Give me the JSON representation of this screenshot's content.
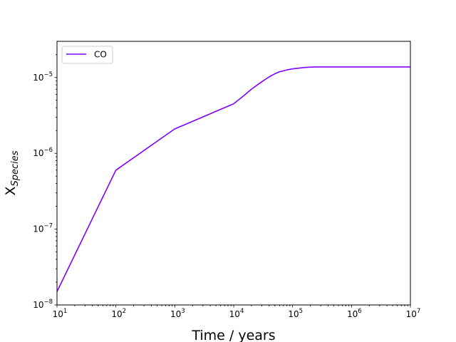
{
  "chart_data": {
    "type": "line",
    "x_scale": "log",
    "y_scale": "log",
    "xlim": [
      10,
      10000000
    ],
    "ylim": [
      1e-08,
      3e-05
    ],
    "xlabel": "Time / years",
    "ylabel_main": "X",
    "ylabel_sub": "Species",
    "x_major_ticks": [
      {
        "value": 10,
        "base": "10",
        "exp": "1"
      },
      {
        "value": 100,
        "base": "10",
        "exp": "2"
      },
      {
        "value": 1000,
        "base": "10",
        "exp": "3"
      },
      {
        "value": 10000,
        "base": "10",
        "exp": "4"
      },
      {
        "value": 100000,
        "base": "10",
        "exp": "5"
      },
      {
        "value": 1000000,
        "base": "10",
        "exp": "6"
      },
      {
        "value": 10000000,
        "base": "10",
        "exp": "7"
      }
    ],
    "y_major_ticks": [
      {
        "value": 1e-08,
        "base": "10",
        "exp": "−8"
      },
      {
        "value": 1e-07,
        "base": "10",
        "exp": "−7"
      },
      {
        "value": 1e-06,
        "base": "10",
        "exp": "−6"
      },
      {
        "value": 1e-05,
        "base": "10",
        "exp": "−5"
      }
    ],
    "grid": false,
    "legend_position": "top-left",
    "series": [
      {
        "name": "CO",
        "color": "#8000ff",
        "x": [
          10,
          100,
          1000,
          10000,
          15000,
          20000,
          30000,
          40000,
          50000,
          60000,
          80000,
          100000,
          150000,
          200000,
          300000,
          500000,
          1000000,
          10000000
        ],
        "y": [
          1.5e-08,
          6e-07,
          2.1e-06,
          4.5e-06,
          5.8e-06,
          7e-06,
          8.8e-06,
          1.02e-05,
          1.12e-05,
          1.19e-05,
          1.26e-05,
          1.3e-05,
          1.35e-05,
          1.37e-05,
          1.38e-05,
          1.38e-05,
          1.38e-05,
          1.38e-05
        ]
      }
    ]
  }
}
